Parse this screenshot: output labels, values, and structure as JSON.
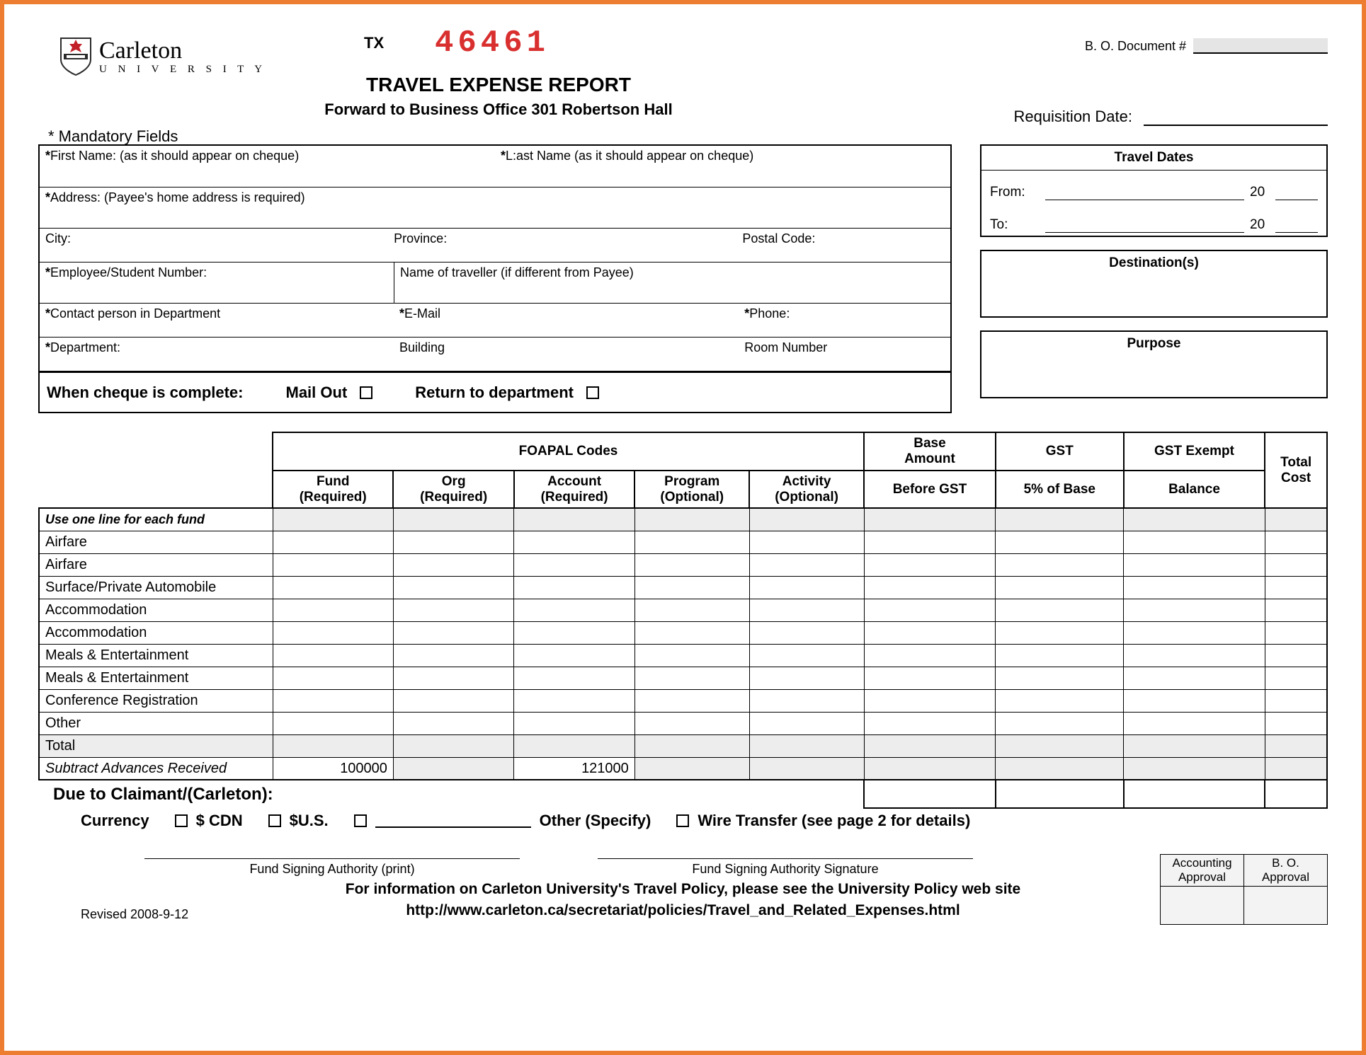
{
  "colors": {
    "frame": "#ed7d31",
    "doc_number": "#d92f2f",
    "grey_cell": "#ededed",
    "shield_red": "#c21f28",
    "shield_black": "#2b2b2b"
  },
  "logo": {
    "name": "Carleton",
    "subline": "U N I V E R S I T Y"
  },
  "tx": {
    "label": "TX",
    "number": "46461"
  },
  "title": {
    "main": "TRAVEL EXPENSE REPORT",
    "sub": "Forward to Business Office 301 Robertson Hall"
  },
  "bo_doc_label": "B. O. Document #",
  "req_date_label": "Requisition Date:",
  "mandatory_label": "* Mandatory Fields",
  "info": {
    "first_name": "First Name: (as it should appear on cheque)",
    "last_name": "L:ast Name (as it should appear on cheque)",
    "address": "Address: (Payee's home address is required)",
    "city": "City:",
    "province": "Province:",
    "postal": "Postal Code:",
    "emp_num": "Employee/Student Number:",
    "traveller": "Name of traveller (if different from Payee)",
    "contact": "Contact person in Department",
    "email": "E-Mail",
    "phone": "Phone:",
    "department": "Department:",
    "building": "Building",
    "room": "Room Number"
  },
  "cheque": {
    "label": "When cheque is complete:",
    "mail_out": "Mail Out",
    "return_dept": "Return to department"
  },
  "right": {
    "travel_dates": "Travel Dates",
    "from": "From:",
    "to": "To:",
    "year_prefix": "20",
    "destinations": "Destination(s)",
    "purpose": "Purpose"
  },
  "expense": {
    "foapal_header": "FOAPAL Codes",
    "cols": {
      "lead": "Use one line for each fund",
      "fund": "Fund",
      "fund_sub": "(Required)",
      "org": "Org",
      "org_sub": "(Required)",
      "account": "Account",
      "account_sub": "(Required)",
      "program": "Program",
      "program_sub": "(Optional)",
      "activity": "Activity",
      "activity_sub": "(Optional)",
      "base": "Base",
      "base_sub1": "Amount",
      "base_sub2": "Before GST",
      "gst": "GST",
      "gst_sub": "5% of Base",
      "exempt": "GST Exempt",
      "exempt_sub": "Balance",
      "total": "Total",
      "total_sub": "Cost"
    },
    "rows": [
      "Airfare",
      "Airfare",
      "Surface/Private Automobile",
      "Accommodation",
      "Accommodation",
      "Meals & Entertainment",
      "Meals & Entertainment",
      "Conference Registration",
      "Other"
    ],
    "total_label": "Total",
    "subtract_label": "Subtract Advances Received",
    "subtract_fund": "100000",
    "subtract_account": "121000",
    "due_label": "Due to Claimant/(Carleton):"
  },
  "currency": {
    "label": "Currency",
    "cdn": "$ CDN",
    "us": "$U.S.",
    "other": "Other (Specify)",
    "wire": "Wire Transfer (see page 2 for details)"
  },
  "footer": {
    "sig_print": "Fund Signing Authority (print)",
    "sig_sign": "Fund Signing Authority Signature",
    "policy1": "For information on Carleton University's Travel Policy, please see the University Policy web site",
    "policy2": "http://www.carleton.ca/secretariat/policies/Travel_and_Related_Expenses.html",
    "revised": "Revised 2008-9-12",
    "approval": {
      "acc1": "Accounting",
      "acc2": "Approval",
      "bo1": "B. O.",
      "bo2": "Approval"
    }
  }
}
